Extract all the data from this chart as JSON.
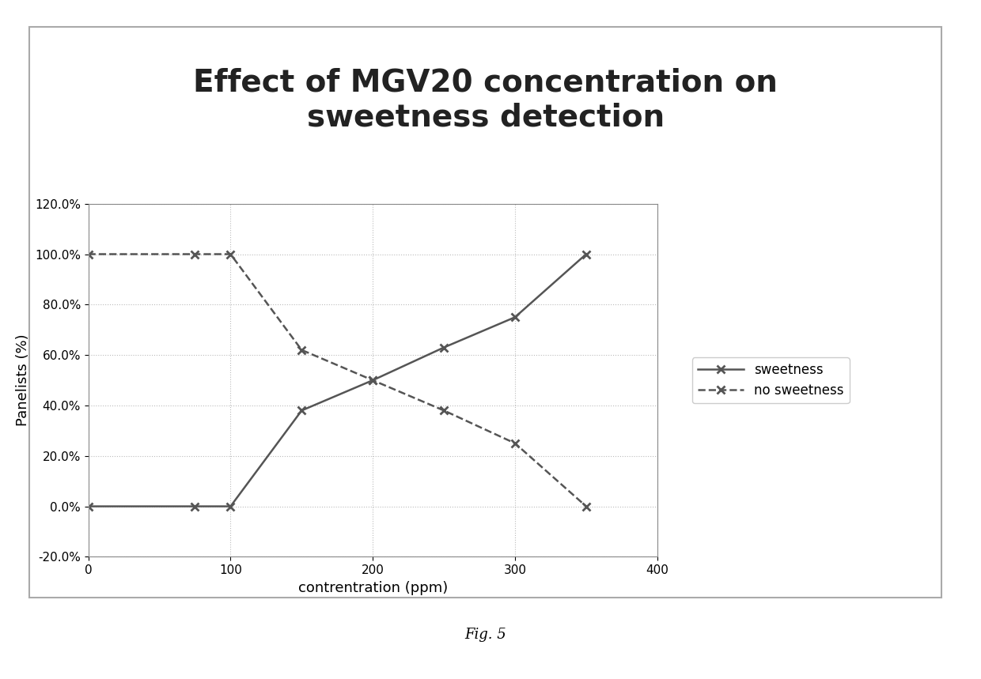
{
  "title": "Effect of MGV20 concentration on\nsweetness detection",
  "xlabel": "contrentration (ppm)",
  "ylabel": "Panelists (%)",
  "sweetness_x": [
    0,
    75,
    100,
    150,
    200,
    250,
    300,
    350
  ],
  "sweetness_y": [
    0.0,
    0.0,
    0.0,
    0.38,
    0.5,
    0.63,
    0.75,
    1.0
  ],
  "no_sweetness_x": [
    0,
    75,
    100,
    150,
    200,
    250,
    300,
    350
  ],
  "no_sweetness_y": [
    1.0,
    1.0,
    1.0,
    0.62,
    0.5,
    0.38,
    0.25,
    0.0
  ],
  "xlim": [
    0,
    400
  ],
  "ylim": [
    -0.2,
    0.125
  ],
  "yticks": [
    -0.2,
    0.0,
    0.2,
    0.4,
    0.6,
    0.8,
    1.0,
    1.2
  ],
  "xticks": [
    0,
    100,
    200,
    300,
    400
  ],
  "line_color": "#555555",
  "background_color": "#ffffff",
  "outer_border_color": "#aaaaaa",
  "fig_caption": "Fig. 5",
  "legend_sweetness": "sweetness",
  "legend_no_sweetness": "no sweetness",
  "title_fontsize": 28,
  "axis_label_fontsize": 13,
  "tick_fontsize": 11,
  "legend_fontsize": 12,
  "caption_fontsize": 13,
  "grid_color": "#bbbbbb",
  "grid_style": "dotted"
}
